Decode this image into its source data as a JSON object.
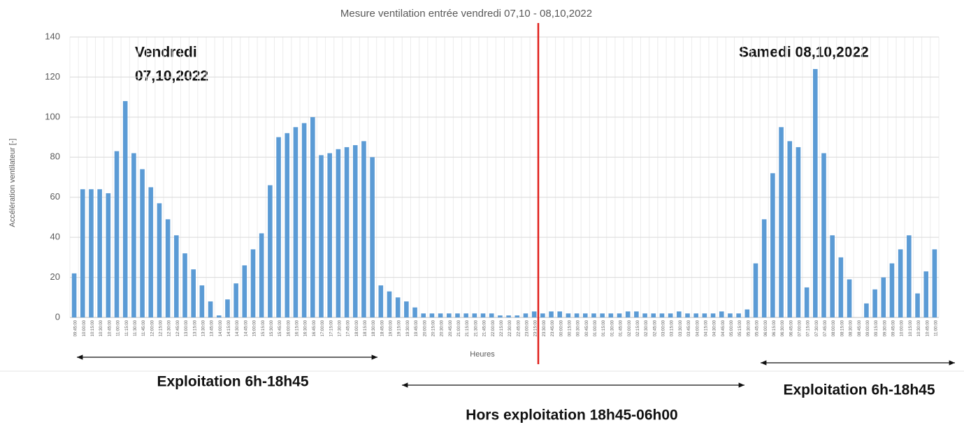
{
  "chart_data": {
    "type": "bar",
    "title": "Mesure ventilation entrée vendredi 07,10 - 08,10,2022",
    "y_label": "Accélération ventilateur [-]",
    "x_label": "Heures",
    "annotations": {
      "friday": [
        "Vendredi",
        "07,10,2022"
      ],
      "saturday": "Samedi 08,10,2022",
      "exploitation_friday": "Exploitation 6h-18h45",
      "hors_exploitation": "Hors exploitation 18h45-06h00",
      "exploitation_saturday": "Exploitation 6h-18h45"
    },
    "categories": [
      "09:45:00",
      "10:00:00",
      "10:15:00",
      "10:30:00",
      "10:45:00",
      "11:00:00",
      "11:15:00",
      "11:30:00",
      "11:45:00",
      "12:00:00",
      "12:15:00",
      "12:30:00",
      "12:45:00",
      "13:00:00",
      "13:15:00",
      "13:30:00",
      "13:45:00",
      "14:00:00",
      "14:15:00",
      "14:30:00",
      "14:45:00",
      "15:00:00",
      "15:15:00",
      "15:30:00",
      "15:45:00",
      "16:00:00",
      "16:15:00",
      "16:30:00",
      "16:45:00",
      "17:00:00",
      "17:15:00",
      "17:30:00",
      "17:45:00",
      "18:00:00",
      "18:15:00",
      "18:30:00",
      "18:45:00",
      "19:00:00",
      "19:15:00",
      "19:30:00",
      "19:45:00",
      "20:00:00",
      "20:15:00",
      "20:30:00",
      "20:45:00",
      "21:00:00",
      "21:15:00",
      "21:30:00",
      "21:45:00",
      "22:00:00",
      "22:15:00",
      "22:30:00",
      "22:45:00",
      "23:00:00",
      "23:15:00",
      "23:30:00",
      "23:45:00",
      "00:00:00",
      "00:15:00",
      "00:30:00",
      "00:45:00",
      "01:00:00",
      "01:15:00",
      "01:30:00",
      "01:45:00",
      "02:00:00",
      "02:15:00",
      "02:30:00",
      "02:45:00",
      "03:00:00",
      "03:15:00",
      "03:30:00",
      "03:45:00",
      "04:00:00",
      "04:15:00",
      "04:30:00",
      "04:45:00",
      "05:00:00",
      "05:15:00",
      "05:30:00",
      "05:45:00",
      "06:00:00",
      "06:15:00",
      "06:30:00",
      "06:45:00",
      "07:00:00",
      "07:15:00",
      "07:30:00",
      "07:45:00",
      "08:00:00",
      "08:15:00",
      "08:30:00",
      "08:45:00",
      "09:00:00",
      "09:15:00",
      "09:30:00",
      "09:45:00",
      "10:00:00",
      "10:15:00",
      "10:30:00",
      "10:45:00",
      "11:00:00"
    ],
    "values": [
      22,
      64,
      64,
      64,
      62,
      83,
      108,
      82,
      74,
      65,
      57,
      49,
      41,
      32,
      24,
      16,
      8,
      1,
      9,
      17,
      26,
      34,
      42,
      66,
      90,
      92,
      95,
      97,
      100,
      81,
      82,
      84,
      85,
      86,
      88,
      80,
      16,
      13,
      10,
      8,
      5,
      2,
      2,
      2,
      2,
      2,
      2,
      2,
      2,
      2,
      1,
      1,
      1,
      2,
      3,
      2,
      3,
      3,
      2,
      2,
      2,
      2,
      2,
      2,
      2,
      3,
      3,
      2,
      2,
      2,
      2,
      3,
      2,
      2,
      2,
      2,
      3,
      2,
      2,
      4,
      27,
      49,
      72,
      95,
      88,
      85,
      15,
      124,
      82,
      41,
      30,
      19,
      0,
      7,
      14,
      20,
      27,
      34,
      41,
      12,
      23,
      34
    ],
    "color": "#5b9bd5",
    "ylim": [
      0,
      140
    ],
    "yticks": [
      0,
      20,
      40,
      60,
      80,
      100,
      120,
      140
    ],
    "grid": true
  }
}
